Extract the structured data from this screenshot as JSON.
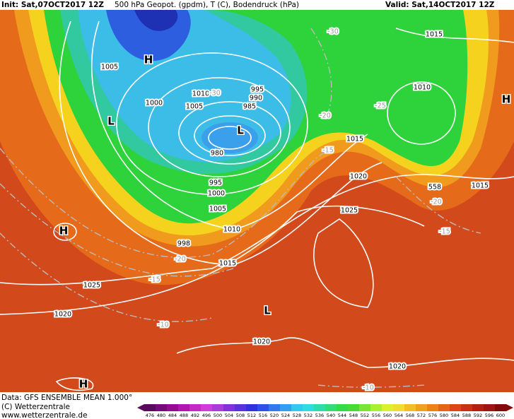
{
  "header": {
    "init": "Init: Sat,07OCT2017 12Z",
    "title": "500 hPa Geopot. (gpdm), T (C), Bodendruck (hPa)",
    "valid": "Valid: Sat,14OCT2017 12Z"
  },
  "footer": {
    "data": "Data: GFS ENSEMBLE MEAN 1.000°",
    "copyright": "(C) Wetterzentrale",
    "url": "www.wetterzentrale.de"
  },
  "colorbar": {
    "values": [
      476,
      480,
      484,
      488,
      492,
      496,
      500,
      504,
      508,
      512,
      516,
      520,
      524,
      528,
      532,
      536,
      540,
      544,
      548,
      552,
      556,
      560,
      564,
      568,
      572,
      576,
      580,
      584,
      588,
      592,
      596,
      600
    ],
    "colors": [
      "#5a0a5a",
      "#780a78",
      "#960a96",
      "#b414b4",
      "#c828c8",
      "#d23cdc",
      "#aa3cdc",
      "#8232dc",
      "#5a32dc",
      "#3232dc",
      "#3250e6",
      "#3278f0",
      "#32a0f0",
      "#32c8f0",
      "#32dcdc",
      "#32dcaa",
      "#32dc78",
      "#32dc46",
      "#46dc32",
      "#78e632",
      "#aaf032",
      "#dcf032",
      "#f0dc32",
      "#f0be28",
      "#f0a01e",
      "#f08214",
      "#e66414",
      "#dc4614",
      "#c83214",
      "#b41e14",
      "#a01414",
      "#820a0a"
    ]
  },
  "map_labels": {
    "isobars": [
      "1005",
      "1000",
      "1010",
      "1005",
      "995",
      "990",
      "985",
      "980",
      "995",
      "1000",
      "1005",
      "1010",
      "1015",
      "1025",
      "1020",
      "1020",
      "1020",
      "1025",
      "1020",
      "1015",
      "1015",
      "1010",
      "1015",
      "998",
      "558"
    ],
    "temperatures": [
      "-30",
      "-30",
      "-20",
      "-25",
      "-15",
      "-20",
      "-15",
      "-20",
      "-15",
      "-10",
      "-10"
    ],
    "centers": [
      "H",
      "L",
      "L",
      "H",
      "L",
      "H",
      "H"
    ]
  }
}
